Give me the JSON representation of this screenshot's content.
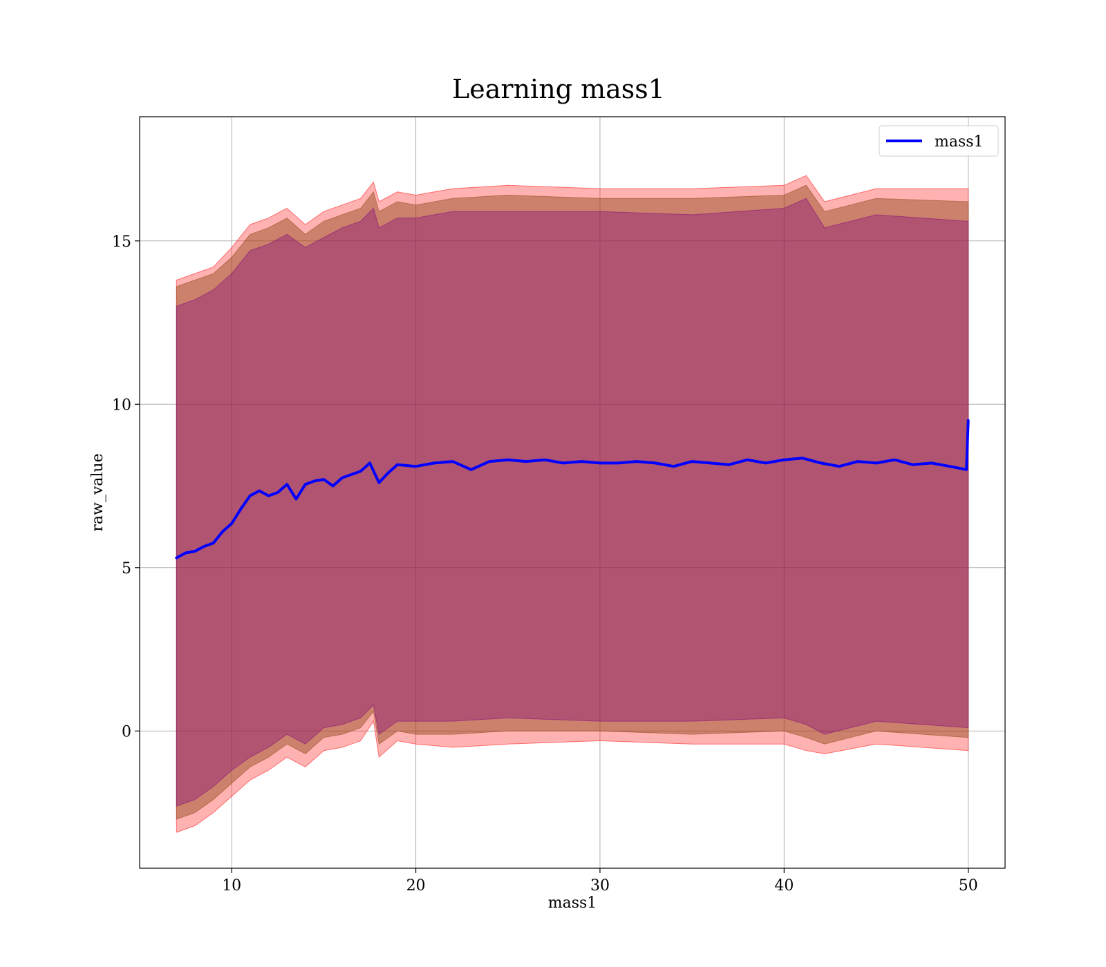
{
  "chart_data": {
    "type": "line",
    "title": "Learning mass1",
    "xlabel": "mass1",
    "ylabel": "raw_value",
    "xlim": [
      5,
      52
    ],
    "ylim": [
      -4.2,
      18.8
    ],
    "xticks": [
      10,
      20,
      30,
      40,
      50
    ],
    "yticks": [
      0,
      5,
      10,
      15
    ],
    "grid": true,
    "legend_position": "top-right",
    "series": [
      {
        "name": "mass1",
        "color": "#0000ff",
        "x": [
          7.0,
          7.5,
          8.0,
          8.5,
          9.0,
          9.5,
          10.0,
          10.5,
          11.0,
          11.5,
          12.0,
          12.5,
          13.0,
          13.5,
          14.0,
          14.5,
          15.0,
          15.5,
          16.0,
          16.5,
          17.0,
          17.5,
          18.0,
          18.5,
          19.0,
          20.0,
          21.0,
          22.0,
          23.0,
          24.0,
          25.0,
          26.0,
          27.0,
          28.0,
          29.0,
          30.0,
          31.0,
          32.0,
          33.0,
          34.0,
          35.0,
          36.0,
          37.0,
          38.0,
          39.0,
          40.0,
          41.0,
          42.0,
          43.0,
          44.0,
          45.0,
          46.0,
          47.0,
          48.0,
          49.0,
          49.9,
          50.0
        ],
        "values": [
          5.3,
          5.45,
          5.5,
          5.65,
          5.75,
          6.1,
          6.35,
          6.8,
          7.2,
          7.35,
          7.2,
          7.3,
          7.55,
          7.1,
          7.55,
          7.65,
          7.7,
          7.5,
          7.75,
          7.85,
          7.95,
          8.2,
          7.6,
          7.9,
          8.15,
          8.1,
          8.2,
          8.25,
          8.0,
          8.25,
          8.3,
          8.25,
          8.3,
          8.2,
          8.25,
          8.2,
          8.2,
          8.25,
          8.2,
          8.1,
          8.25,
          8.2,
          8.15,
          8.3,
          8.2,
          8.3,
          8.35,
          8.2,
          8.1,
          8.25,
          8.2,
          8.3,
          8.15,
          8.2,
          8.1,
          8.0,
          9.5
        ]
      }
    ],
    "bands": [
      {
        "color": "#ff0000",
        "opacity": 0.3,
        "x": [
          7.0,
          8.0,
          9.0,
          10.0,
          11.0,
          12.0,
          13.0,
          14.0,
          15.0,
          16.0,
          17.0,
          17.7,
          18.0,
          19.0,
          20.0,
          22.0,
          25.0,
          30.0,
          35.0,
          40.0,
          41.2,
          42.2,
          45.0,
          50.0
        ],
        "upper": [
          13.8,
          14.0,
          14.2,
          14.8,
          15.5,
          15.7,
          16.0,
          15.5,
          15.9,
          16.1,
          16.3,
          16.8,
          16.2,
          16.5,
          16.4,
          16.6,
          16.7,
          16.6,
          16.6,
          16.7,
          17.0,
          16.2,
          16.6,
          16.6
        ],
        "lower": [
          -3.1,
          -2.9,
          -2.5,
          -2.0,
          -1.5,
          -1.2,
          -0.8,
          -1.1,
          -0.6,
          -0.5,
          -0.3,
          0.3,
          -0.8,
          -0.3,
          -0.4,
          -0.5,
          -0.4,
          -0.3,
          -0.4,
          -0.4,
          -0.6,
          -0.7,
          -0.4,
          -0.6
        ]
      },
      {
        "color": "#8b4513",
        "opacity": 0.45,
        "x": [
          7.0,
          8.0,
          9.0,
          10.0,
          11.0,
          12.0,
          13.0,
          14.0,
          15.0,
          16.0,
          17.0,
          17.7,
          18.0,
          19.0,
          20.0,
          22.0,
          25.0,
          30.0,
          35.0,
          40.0,
          41.2,
          42.2,
          45.0,
          50.0
        ],
        "upper": [
          13.6,
          13.8,
          14.0,
          14.5,
          15.2,
          15.4,
          15.7,
          15.2,
          15.6,
          15.8,
          16.0,
          16.5,
          15.9,
          16.2,
          16.1,
          16.3,
          16.4,
          16.3,
          16.3,
          16.4,
          16.7,
          15.9,
          16.3,
          16.2
        ],
        "lower": [
          -2.7,
          -2.5,
          -2.1,
          -1.6,
          -1.1,
          -0.8,
          -0.4,
          -0.7,
          -0.2,
          -0.1,
          0.1,
          0.6,
          -0.4,
          0.0,
          -0.1,
          -0.1,
          0.0,
          0.0,
          -0.1,
          0.0,
          -0.2,
          -0.4,
          0.0,
          -0.2
        ]
      },
      {
        "color": "#800080",
        "opacity": 0.35,
        "x": [
          7.0,
          8.0,
          9.0,
          10.0,
          11.0,
          12.0,
          13.0,
          14.0,
          15.0,
          16.0,
          17.0,
          17.7,
          18.0,
          19.0,
          20.0,
          22.0,
          25.0,
          30.0,
          35.0,
          40.0,
          41.2,
          42.2,
          45.0,
          50.0
        ],
        "upper": [
          13.0,
          13.2,
          13.5,
          14.0,
          14.7,
          14.9,
          15.2,
          14.8,
          15.1,
          15.4,
          15.6,
          16.0,
          15.4,
          15.7,
          15.7,
          15.9,
          15.9,
          15.9,
          15.8,
          16.0,
          16.3,
          15.4,
          15.8,
          15.6
        ],
        "lower": [
          -2.3,
          -2.1,
          -1.7,
          -1.2,
          -0.8,
          -0.5,
          -0.1,
          -0.4,
          0.1,
          0.2,
          0.4,
          0.8,
          -0.1,
          0.3,
          0.3,
          0.3,
          0.4,
          0.3,
          0.3,
          0.4,
          0.2,
          -0.1,
          0.3,
          0.1
        ]
      }
    ]
  }
}
